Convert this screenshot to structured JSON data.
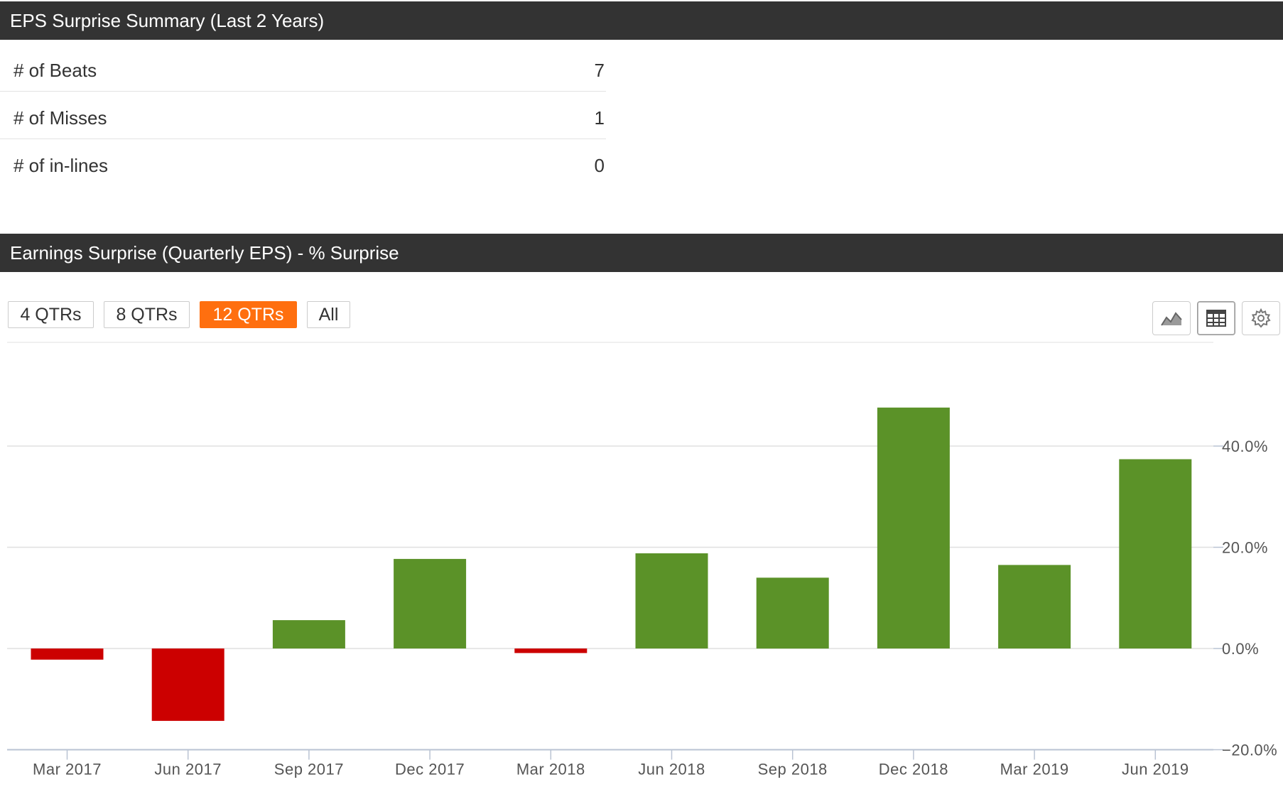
{
  "summary": {
    "title": "EPS Surprise Summary (Last 2 Years)",
    "rows": [
      {
        "label": "# of Beats",
        "value": "7"
      },
      {
        "label": "# of Misses",
        "value": "1"
      },
      {
        "label": "# of in-lines",
        "value": "0"
      }
    ]
  },
  "chart_section": {
    "title": "Earnings Surprise (Quarterly EPS) - % Surprise",
    "range_buttons": [
      "4 QTRs",
      "8 QTRs",
      "12 QTRs",
      "All"
    ],
    "active_range": "12 QTRs",
    "tools": [
      {
        "icon": "area-chart-icon"
      },
      {
        "icon": "table-icon"
      },
      {
        "icon": "gear-icon"
      }
    ]
  },
  "colors": {
    "header_bg": "#333333",
    "accent": "#ff6f0f",
    "positive": "#5b9228",
    "negative": "#cc0000"
  },
  "chart_data": {
    "type": "bar",
    "categories": [
      "Mar 2017",
      "Jun 2017",
      "Sep 2017",
      "Dec 2017",
      "Mar 2018",
      "Jun 2018",
      "Sep 2018",
      "Dec 2018",
      "Mar 2019",
      "Jun 2019"
    ],
    "values": [
      -2.2,
      -14.3,
      5.6,
      17.7,
      -0.9,
      18.8,
      14.0,
      47.6,
      16.5,
      37.4
    ],
    "y_ticks": [
      -20,
      0,
      20,
      40
    ],
    "y_tick_labels": [
      "−20.0%",
      "0.0%",
      "20.0%",
      "40.0%"
    ],
    "ylim": [
      -20,
      60
    ],
    "y_axis_position": "right",
    "grid": true,
    "legend": "none",
    "title": "",
    "xlabel": "",
    "ylabel": ""
  }
}
